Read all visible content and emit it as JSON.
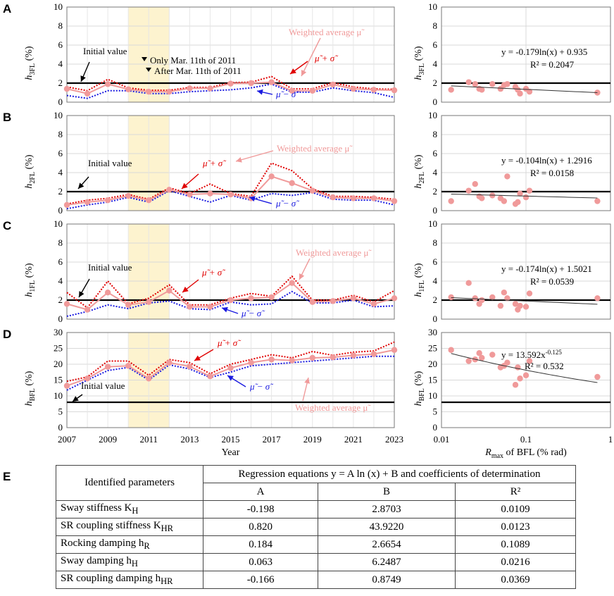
{
  "panels": [
    {
      "letter": "A",
      "ylabel_main": "h",
      "ylabel_sub": "3FL",
      "ylabel_unit": "(%)",
      "ylim": [
        0,
        10
      ],
      "yticks": [
        0,
        2,
        4,
        6,
        8,
        10
      ],
      "initial_value": 2.0,
      "mu": [
        1.4,
        0.9,
        1.9,
        1.35,
        1.1,
        1.1,
        1.45,
        1.45,
        1.95,
        2.0,
        2.1,
        1.2,
        1.2,
        1.85,
        1.4,
        1.3,
        1.25
      ],
      "mu_plus": [
        1.6,
        1.2,
        2.4,
        1.5,
        1.25,
        1.25,
        1.55,
        1.55,
        2.05,
        2.1,
        2.7,
        1.4,
        1.4,
        2.05,
        1.6,
        1.4,
        1.35
      ],
      "mu_minus": [
        0.7,
        0.4,
        1.2,
        1.2,
        0.9,
        0.9,
        1.1,
        1.2,
        1.3,
        1.5,
        1.9,
        1.05,
        1.05,
        1.5,
        1.2,
        1.0,
        0.5
      ],
      "labels": {
        "initial": "Initial value",
        "only": "Only Mar. 11th of 2011",
        "after": "After Mar. 11th of 2011",
        "wavg": "Weighted average μ̃",
        "plus": "μ̃ + σ̃",
        "minus": "μ̃ − σ̃"
      },
      "scatter": {
        "x": [
          0.013,
          0.021,
          0.025,
          0.028,
          0.03,
          0.04,
          0.05,
          0.055,
          0.06,
          0.075,
          0.08,
          0.085,
          0.1,
          0.11,
          0.7
        ],
        "y": [
          1.3,
          2.1,
          1.9,
          1.4,
          1.3,
          1.9,
          1.4,
          1.8,
          1.9,
          1.6,
          1.3,
          0.9,
          1.4,
          1.1,
          1.0
        ],
        "equation": "y = -0.179ln(x) + 0.935",
        "r2": "R² = 0.2047",
        "fit_a": -0.179,
        "fit_b": 0.935
      }
    },
    {
      "letter": "B",
      "ylabel_main": "h",
      "ylabel_sub": "2FL",
      "ylabel_unit": "(%)",
      "ylim": [
        0,
        10
      ],
      "yticks": [
        0,
        2,
        4,
        6,
        8,
        10
      ],
      "initial_value": 2.0,
      "mu": [
        0.6,
        0.9,
        1.1,
        1.55,
        1.1,
        2.2,
        1.7,
        1.8,
        1.7,
        1.3,
        3.6,
        2.9,
        2.1,
        1.4,
        1.3,
        1.3,
        1.0
      ],
      "mu_plus": [
        0.7,
        1.1,
        1.3,
        1.7,
        1.2,
        2.4,
        1.8,
        2.8,
        1.8,
        1.5,
        5.0,
        4.2,
        2.3,
        1.5,
        1.5,
        1.4,
        1.2
      ],
      "mu_minus": [
        0.2,
        0.6,
        0.9,
        1.4,
        0.9,
        2.1,
        1.5,
        0.9,
        1.6,
        1.1,
        1.8,
        1.6,
        1.9,
        1.2,
        1.1,
        1.1,
        0.6
      ],
      "labels": {
        "initial": "Initial value",
        "wavg": "Weighted average μ̃",
        "plus": "μ̃ + σ̃",
        "minus": "μ̃ − σ̃"
      },
      "scatter": {
        "x": [
          0.013,
          0.021,
          0.025,
          0.028,
          0.03,
          0.04,
          0.05,
          0.055,
          0.06,
          0.075,
          0.08,
          0.085,
          0.1,
          0.11,
          0.7
        ],
        "y": [
          1.0,
          2.1,
          2.8,
          1.5,
          1.3,
          1.6,
          1.3,
          1.0,
          3.6,
          0.7,
          0.9,
          1.8,
          1.4,
          2.1,
          1.0
        ],
        "equation": "y = -0.104ln(x) + 1.2916",
        "r2": "R² = 0.0158",
        "fit_a": -0.104,
        "fit_b": 1.2916
      }
    },
    {
      "letter": "C",
      "ylabel_main": "h",
      "ylabel_sub": "1FL",
      "ylabel_unit": "(%)",
      "ylim": [
        0,
        10
      ],
      "yticks": [
        0,
        2,
        4,
        6,
        8,
        10
      ],
      "initial_value": 2.0,
      "mu": [
        1.6,
        1.0,
        2.8,
        1.5,
        1.8,
        3.0,
        1.3,
        1.3,
        2.0,
        2.2,
        2.3,
        3.8,
        1.8,
        1.9,
        2.2,
        1.6,
        2.2
      ],
      "mu_plus": [
        2.8,
        1.2,
        4.0,
        1.6,
        2.2,
        3.6,
        1.5,
        1.5,
        2.2,
        2.7,
        2.4,
        4.5,
        2.0,
        2.0,
        2.5,
        1.8,
        3.0
      ],
      "mu_minus": [
        0.3,
        0.8,
        1.5,
        1.1,
        1.7,
        1.9,
        1.1,
        1.0,
        1.8,
        1.5,
        1.6,
        2.9,
        1.7,
        1.7,
        2.0,
        1.3,
        1.4
      ],
      "labels": {
        "initial": "Initial value",
        "wavg": "Weighted average μ̃",
        "plus": "μ̃ + σ̃",
        "minus": "μ̃ − σ̃"
      },
      "scatter": {
        "x": [
          0.013,
          0.021,
          0.025,
          0.028,
          0.03,
          0.04,
          0.05,
          0.055,
          0.06,
          0.075,
          0.08,
          0.085,
          0.1,
          0.11,
          0.7
        ],
        "y": [
          2.3,
          3.8,
          2.2,
          1.6,
          2.0,
          2.3,
          1.4,
          2.8,
          2.2,
          1.6,
          1.0,
          1.4,
          1.3,
          2.7,
          2.2
        ],
        "equation": "y = -0.174ln(x) + 1.5021",
        "r2": "R² = 0.0539",
        "fit_a": -0.174,
        "fit_b": 1.5021
      }
    },
    {
      "letter": "D",
      "ylabel_main": "h",
      "ylabel_sub": "BFL",
      "ylabel_unit": "(%)",
      "ylim": [
        0,
        30
      ],
      "yticks": [
        0,
        5,
        10,
        15,
        20,
        25,
        30
      ],
      "initial_value": 8.0,
      "mu": [
        13.2,
        15.5,
        19.2,
        19.5,
        15.5,
        20.5,
        19.3,
        16.2,
        18.8,
        20.5,
        21.5,
        21.2,
        22.0,
        22.2,
        22.8,
        23.2,
        24.5
      ],
      "mu_plus": [
        14.6,
        16.0,
        21.0,
        21.0,
        16.5,
        21.5,
        20.5,
        17.0,
        20.0,
        21.5,
        23.0,
        22.0,
        24.0,
        22.8,
        23.8,
        24.2,
        27.0
      ],
      "mu_minus": [
        11.8,
        15.0,
        18.0,
        19.0,
        15.0,
        19.8,
        18.5,
        15.8,
        17.5,
        19.5,
        20.0,
        20.5,
        21.0,
        21.5,
        22.0,
        22.5,
        22.5
      ],
      "labels": {
        "initial": "Initial value",
        "wavg": "Weighted average μ̃",
        "plus": "μ̃ + σ̃",
        "minus": "μ̃ − σ̃"
      },
      "scatter": {
        "x": [
          0.013,
          0.021,
          0.025,
          0.028,
          0.03,
          0.04,
          0.05,
          0.055,
          0.06,
          0.075,
          0.08,
          0.085,
          0.1,
          0.11,
          0.7
        ],
        "y": [
          24.5,
          21.0,
          21.5,
          23.5,
          22.0,
          23.0,
          19.0,
          19.5,
          20.5,
          13.5,
          19.0,
          15.5,
          16.5,
          21.0,
          16.0
        ],
        "equation": "y = 13.592x",
        "eq_exp": "-0.125",
        "r2": "R² = 0.532",
        "fit_type": "power",
        "fit_a": 13.592,
        "fit_b": -0.125
      }
    }
  ],
  "chart_data": {
    "type": "line",
    "title": "",
    "x": [
      2007,
      2008,
      2009,
      2010,
      2011,
      2012,
      2013,
      2014,
      2015,
      2016,
      2017,
      2018,
      2019,
      2020,
      2021,
      2022,
      2023
    ],
    "xlabel": "Year",
    "xticks": [
      "2007",
      "2009",
      "2011",
      "2013",
      "2015",
      "2017",
      "2019",
      "2021",
      "2023"
    ],
    "shaded_range": [
      2010,
      2012
    ],
    "scatter_xlabel_main": "R",
    "scatter_xlabel_sub": "max",
    "scatter_xlabel_rest": " of BFL (% rad)",
    "scatter_xticks": [
      "0.01",
      "0.1",
      "1"
    ],
    "scatter_xlim": [
      0.01,
      1
    ],
    "colors": {
      "weighted": "#f09a9a",
      "plus": "#e00000",
      "minus": "#1a1ae0",
      "shade": "#fdf3cf",
      "initial": "#000000"
    }
  },
  "table": {
    "letter": "E",
    "param_header": "Identified parameters",
    "reg_header": "Regression equations y = A ln (x) + B and coefficients of determination",
    "col_a": "A",
    "col_b": "B",
    "col_r2": "R²",
    "rows": [
      {
        "name": "Sway stiffness K",
        "sub": "H",
        "a": "-0.198",
        "b": "2.8703",
        "r2": "0.0109"
      },
      {
        "name": "SR coupling stiffness K",
        "sub": "HR",
        "a": "0.820",
        "b": "43.9220",
        "r2": "0.0123"
      },
      {
        "name": "Rocking damping h",
        "sub": "R",
        "a": "0.184",
        "b": "2.6654",
        "r2": "0.1089"
      },
      {
        "name": "Sway damping h",
        "sub": "H",
        "a": "0.063",
        "b": "6.2487",
        "r2": "0.0216"
      },
      {
        "name": "SR coupling damping h",
        "sub": "HR",
        "a": "-0.166",
        "b": "0.8749",
        "r2": "0.0369"
      }
    ]
  }
}
